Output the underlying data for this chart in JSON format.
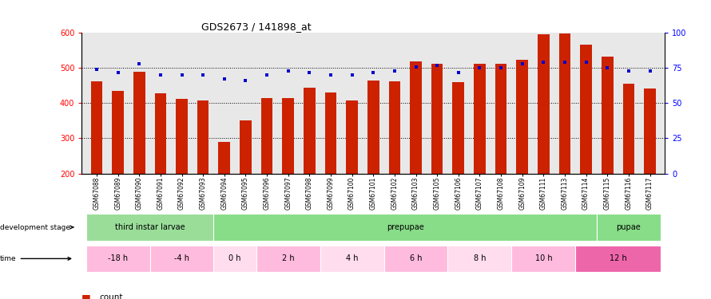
{
  "title": "GDS2673 / 141898_at",
  "samples": [
    "GSM67088",
    "GSM67089",
    "GSM67090",
    "GSM67091",
    "GSM67092",
    "GSM67093",
    "GSM67094",
    "GSM67095",
    "GSM67096",
    "GSM67097",
    "GSM67098",
    "GSM67099",
    "GSM67100",
    "GSM67101",
    "GSM67102",
    "GSM67103",
    "GSM67105",
    "GSM67106",
    "GSM67107",
    "GSM67108",
    "GSM67109",
    "GSM67111",
    "GSM67113",
    "GSM67114",
    "GSM67115",
    "GSM67116",
    "GSM67117"
  ],
  "counts": [
    462,
    435,
    490,
    428,
    413,
    408,
    290,
    350,
    415,
    415,
    445,
    430,
    408,
    464,
    462,
    518,
    513,
    460,
    513,
    513,
    523,
    597,
    598,
    567,
    532,
    455,
    442
  ],
  "percentiles": [
    74,
    72,
    78,
    70,
    70,
    70,
    67,
    66,
    70,
    73,
    72,
    70,
    70,
    72,
    73,
    76,
    77,
    72,
    75,
    75,
    78,
    79,
    79,
    79,
    75,
    73,
    73
  ],
  "ylim_left": [
    200,
    600
  ],
  "ylim_right": [
    0,
    100
  ],
  "yticks_left": [
    200,
    300,
    400,
    500,
    600
  ],
  "yticks_right": [
    0,
    25,
    50,
    75,
    100
  ],
  "bar_color": "#cc2200",
  "dot_color": "#0000cc",
  "background_color": "#e8e8e8",
  "dev_stage_colors": {
    "third instar larvae": "#99dd99",
    "prepupae": "#88dd88",
    "pupae": "#88dd88"
  },
  "dev_stages": [
    {
      "label": "third instar larvae",
      "start": 0,
      "end": 6
    },
    {
      "label": "prepupae",
      "start": 6,
      "end": 24
    },
    {
      "label": "pupae",
      "start": 24,
      "end": 27
    }
  ],
  "time_colors": [
    "#ffbbdd",
    "#ffbbdd",
    "#ffddee",
    "#ffbbdd",
    "#ffddee",
    "#ffbbdd",
    "#ffddee",
    "#ffbbdd",
    "#ee66aa"
  ],
  "time_groups": [
    {
      "label": "-18 h",
      "start": 0,
      "end": 3
    },
    {
      "label": "-4 h",
      "start": 3,
      "end": 6
    },
    {
      "label": "0 h",
      "start": 6,
      "end": 8
    },
    {
      "label": "2 h",
      "start": 8,
      "end": 11
    },
    {
      "label": "4 h",
      "start": 11,
      "end": 14
    },
    {
      "label": "6 h",
      "start": 14,
      "end": 17
    },
    {
      "label": "8 h",
      "start": 17,
      "end": 20
    },
    {
      "label": "10 h",
      "start": 20,
      "end": 23
    },
    {
      "label": "12 h",
      "start": 23,
      "end": 27
    }
  ]
}
